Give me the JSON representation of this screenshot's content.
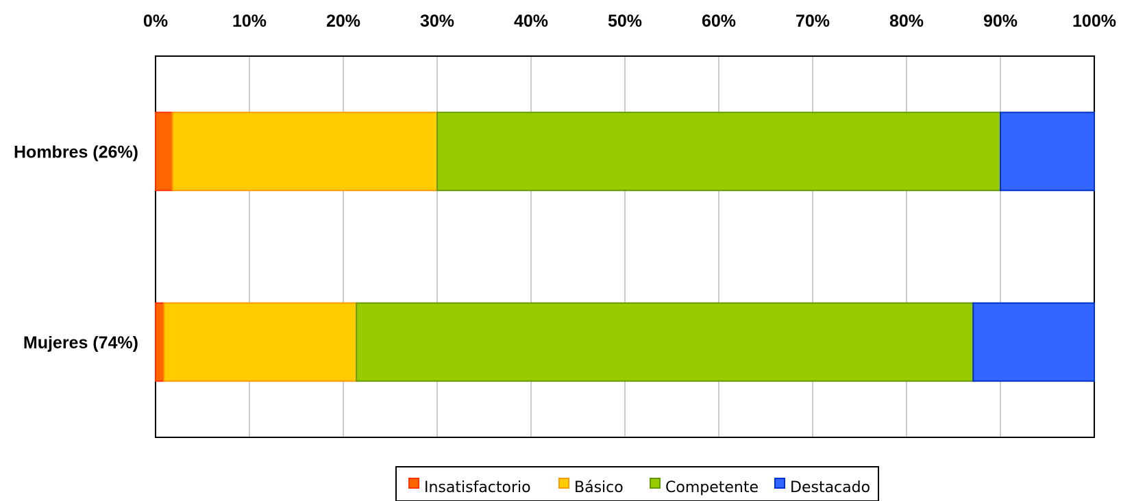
{
  "chart_data": {
    "type": "bar",
    "orientation": "horizontal",
    "stacked": "percent",
    "categories": [
      "Hombres (26%)",
      "Mujeres (74%)"
    ],
    "series": [
      {
        "name": "Insatisfactorio",
        "values": [
          1.8,
          0.9
        ],
        "color": "#FF6600",
        "stroke": "#FF3300"
      },
      {
        "name": "Básico",
        "values": [
          28.2,
          20.5
        ],
        "color": "#FFCC00",
        "stroke": "#FF9900"
      },
      {
        "name": "Competente",
        "values": [
          60.0,
          65.7
        ],
        "color": "#99CC00",
        "stroke": "#669900"
      },
      {
        "name": "Destacado",
        "values": [
          10.0,
          12.9
        ],
        "color": "#3366FF",
        "stroke": "#0033CC"
      }
    ],
    "xlim": [
      0,
      100
    ],
    "x_ticks": [
      "0%",
      "10%",
      "20%",
      "30%",
      "40%",
      "50%",
      "60%",
      "70%",
      "80%",
      "90%",
      "100%"
    ],
    "x_axis_position": "top",
    "grid": true,
    "legend_position": "bottom-center"
  }
}
